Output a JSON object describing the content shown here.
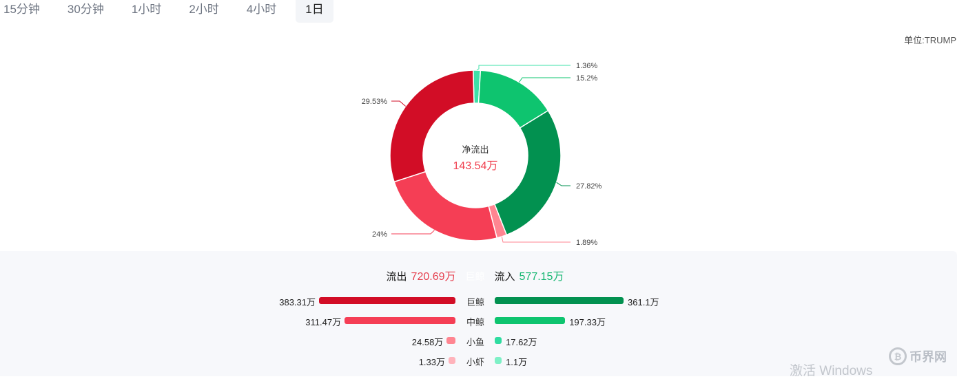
{
  "tabs": [
    {
      "label": "15分钟",
      "active": false
    },
    {
      "label": "30分钟",
      "active": false
    },
    {
      "label": "1小时",
      "active": false
    },
    {
      "label": "2小时",
      "active": false
    },
    {
      "label": "4小时",
      "active": false
    },
    {
      "label": "1日",
      "active": true
    }
  ],
  "unit_label": "单位:TRUMP",
  "chart_data": {
    "type": "pie",
    "donut": true,
    "center_label": "净流出",
    "center_value": "143.54万",
    "slices": [
      {
        "label": "1.36%",
        "value": 1.36,
        "color": "#3ee0a8",
        "category": "小鱼流入"
      },
      {
        "label": "15.2%",
        "value": 15.2,
        "color": "#0ec46f",
        "category": "中鲸流入"
      },
      {
        "label": "27.82%",
        "value": 27.82,
        "color": "#029150",
        "category": "巨鲸流入"
      },
      {
        "label": "1.89%",
        "value": 1.89,
        "color": "#ff8591",
        "category": "小鱼流出"
      },
      {
        "label": "24%",
        "value": 24.0,
        "color": "#f53e55",
        "category": "中鲸流出"
      },
      {
        "label": "29.53%",
        "value": 29.53,
        "color": "#d20d26",
        "category": "巨鲸流出"
      }
    ]
  },
  "summary": {
    "outflow_label": "流出",
    "outflow_value": "720.69万",
    "middle_label": "巨鲸",
    "inflow_label": "流入",
    "inflow_value": "577.15万"
  },
  "breakdown": [
    {
      "category": "巨鲸",
      "out_value": "383.31万",
      "out_amount": 383.31,
      "out_color": "#d20d26",
      "in_value": "361.1万",
      "in_amount": 361.1,
      "in_color": "#029150"
    },
    {
      "category": "中鲸",
      "out_value": "311.47万",
      "out_amount": 311.47,
      "out_color": "#f53e55",
      "in_value": "197.33万",
      "in_amount": 197.33,
      "in_color": "#0ec46f"
    },
    {
      "category": "小鱼",
      "out_value": "24.58万",
      "out_amount": 24.58,
      "out_color": "#ff8591",
      "in_value": "17.62万",
      "in_amount": 17.62,
      "in_color": "#2fdca0"
    },
    {
      "category": "小虾",
      "out_value": "1.33万",
      "out_amount": 1.33,
      "out_color": "#ffb3bb",
      "in_value": "1.1万",
      "in_amount": 1.1,
      "in_color": "#7ef0c6"
    }
  ],
  "watermark": "激活 Windows",
  "brand": {
    "icon": "bitcoin-coin-icon",
    "text": "币界网"
  }
}
